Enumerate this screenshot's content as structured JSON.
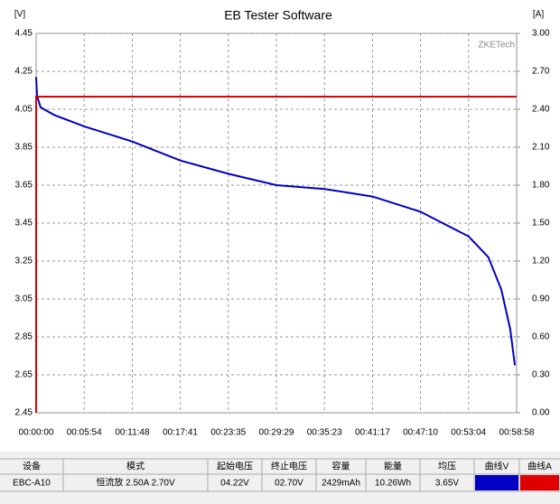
{
  "chart_data": {
    "type": "line",
    "title": "EB Tester Software",
    "y_unit": "[V]",
    "y2_unit": "[A]",
    "watermark": "ZKETech",
    "xlim": [
      0,
      3538
    ],
    "xticks": [
      {
        "value": 0,
        "label": "00:00:00"
      },
      {
        "value": 354,
        "label": "00:05:54"
      },
      {
        "value": 708,
        "label": "00:11:48"
      },
      {
        "value": 1061,
        "label": "00:17:41"
      },
      {
        "value": 1415,
        "label": "00:23:35"
      },
      {
        "value": 1769,
        "label": "00:29:29"
      },
      {
        "value": 2123,
        "label": "00:35:23"
      },
      {
        "value": 2477,
        "label": "00:41:17"
      },
      {
        "value": 2830,
        "label": "00:47:10"
      },
      {
        "value": 3184,
        "label": "00:53:04"
      },
      {
        "value": 3538,
        "label": "00:58:58"
      }
    ],
    "ylim": [
      2.45,
      4.45
    ],
    "yticks": [
      2.45,
      2.65,
      2.85,
      3.05,
      3.25,
      3.45,
      3.65,
      3.85,
      4.05,
      4.25,
      4.45
    ],
    "y2lim": [
      0,
      3
    ],
    "y2ticks": [
      {
        "value": 0,
        "label": "0.00"
      },
      {
        "value": 0.3,
        "label": "0.30"
      },
      {
        "value": 0.6,
        "label": "0.60"
      },
      {
        "value": 0.9,
        "label": "0.90"
      },
      {
        "value": 1.2,
        "label": "1.20"
      },
      {
        "value": 1.5,
        "label": "1.50"
      },
      {
        "value": 1.8,
        "label": "1.80"
      },
      {
        "value": 2.1,
        "label": "2.10"
      },
      {
        "value": 2.4,
        "label": "2.40"
      },
      {
        "value": 2.7,
        "label": "2.70"
      },
      {
        "value": 3,
        "label": "3.00"
      }
    ],
    "grid": true,
    "series": [
      {
        "color": "#0000c0",
        "x": [
          0,
          7,
          33,
          133,
          354,
          708,
          1061,
          1415,
          1769,
          2123,
          2477,
          2830,
          2993,
          3184,
          3330,
          3425,
          3491,
          3525
        ],
        "values": [
          4.22,
          4.12,
          4.06,
          4.02,
          3.96,
          3.88,
          3.78,
          3.71,
          3.65,
          3.63,
          3.59,
          3.51,
          3.45,
          3.38,
          3.27,
          3.1,
          2.89,
          2.7
        ]
      },
      {
        "color": "#e00000",
        "axis": "y2",
        "x": [
          0,
          0,
          3538
        ],
        "values": [
          0,
          2.5,
          2.5
        ]
      }
    ]
  },
  "table": {
    "headers": [
      "设备",
      "模式",
      "起始电压",
      "终止电压",
      "容量",
      "能量",
      "均压",
      "曲线V",
      "曲线A"
    ],
    "row": [
      "EBC-A10",
      "恒流放 2.50A 2.70V",
      "04.22V",
      "02.70V",
      "2429mAh",
      "10.26Wh",
      "3.65V"
    ]
  }
}
